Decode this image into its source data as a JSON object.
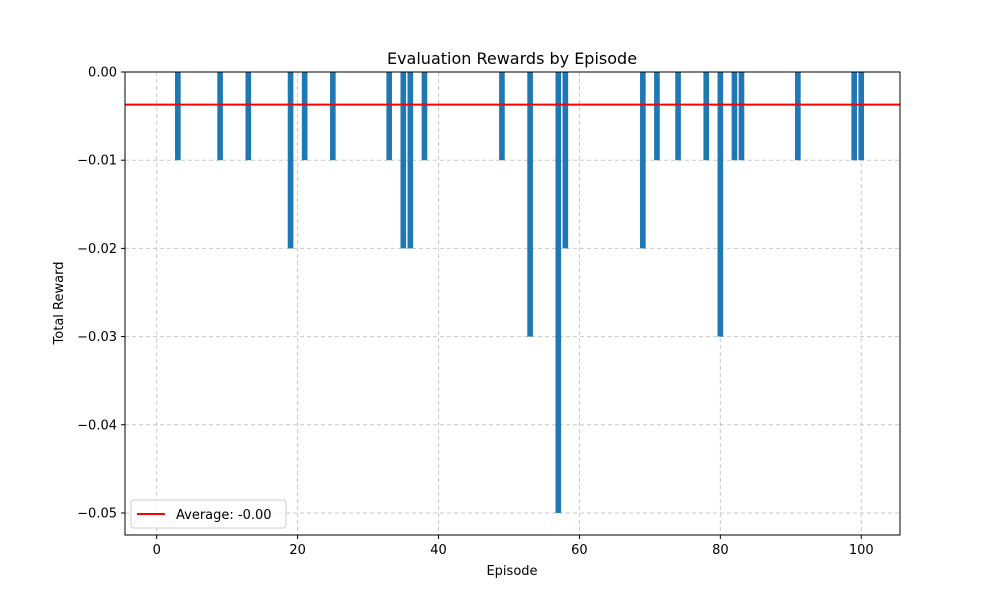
{
  "chart_data": {
    "type": "bar",
    "title": "Evaluation Rewards by Episode",
    "xlabel": "Episode",
    "ylabel": "Total Reward",
    "xlim": [
      -4.5,
      105.5
    ],
    "ylim": [
      -0.0525,
      0.0
    ],
    "x_ticks": [
      0,
      20,
      40,
      60,
      80,
      100
    ],
    "x_tick_labels": [
      "0",
      "20",
      "40",
      "60",
      "80",
      "100"
    ],
    "y_ticks": [
      0.0,
      -0.01,
      -0.02,
      -0.03,
      -0.04,
      -0.05
    ],
    "y_tick_labels": [
      "0.00",
      "−0.01",
      "−0.02",
      "−0.03",
      "−0.04",
      "−0.05"
    ],
    "grid": true,
    "legend_position": "lower-left",
    "bar_color": "#1f77b4",
    "average_line": {
      "label": "Average: -0.00",
      "value": -0.0037,
      "color": "#ff0000"
    },
    "bars": [
      {
        "x": 3,
        "y": -0.01
      },
      {
        "x": 9,
        "y": -0.01
      },
      {
        "x": 13,
        "y": -0.01
      },
      {
        "x": 19,
        "y": -0.02
      },
      {
        "x": 21,
        "y": -0.01
      },
      {
        "x": 25,
        "y": -0.01
      },
      {
        "x": 33,
        "y": -0.01
      },
      {
        "x": 35,
        "y": -0.02
      },
      {
        "x": 36,
        "y": -0.02
      },
      {
        "x": 38,
        "y": -0.01
      },
      {
        "x": 49,
        "y": -0.01
      },
      {
        "x": 53,
        "y": -0.03
      },
      {
        "x": 57,
        "y": -0.05
      },
      {
        "x": 58,
        "y": -0.02
      },
      {
        "x": 69,
        "y": -0.02
      },
      {
        "x": 71,
        "y": -0.01
      },
      {
        "x": 74,
        "y": -0.01
      },
      {
        "x": 78,
        "y": -0.01
      },
      {
        "x": 80,
        "y": -0.03
      },
      {
        "x": 82,
        "y": -0.01
      },
      {
        "x": 83,
        "y": -0.01
      },
      {
        "x": 91,
        "y": -0.01
      },
      {
        "x": 99,
        "y": -0.01
      },
      {
        "x": 100,
        "y": -0.01
      }
    ]
  }
}
